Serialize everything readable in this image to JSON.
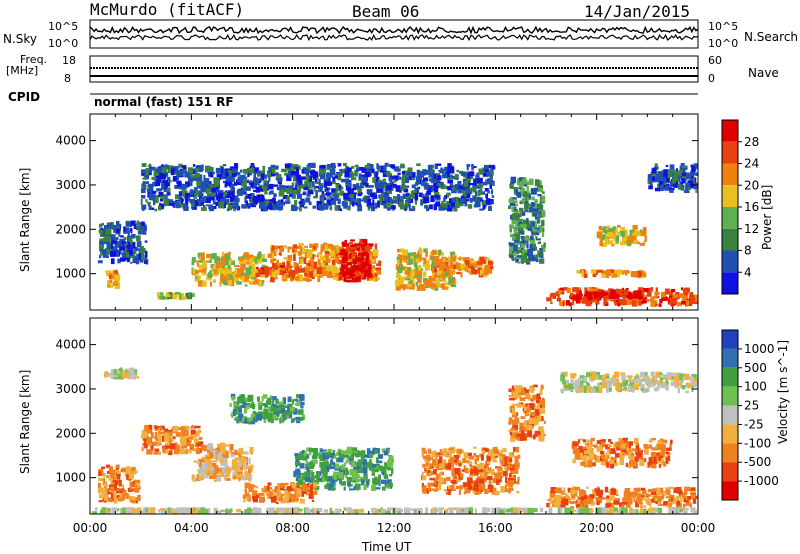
{
  "header": {
    "station": "McMurdo (fitACF)",
    "beam": "Beam 06",
    "date": "14/Jan/2015"
  },
  "strip_labels": {
    "nsky": "N.Sky",
    "nsky_top": "10^5",
    "nsky_bottom": "10^0",
    "nsky_top_right": "10^5",
    "nsky_bottom_right": "10^0",
    "nsearch": "N.Search",
    "freq": "Freq.",
    "freq_unit": "[MHz]",
    "freq_top": "18",
    "freq_bottom": "8",
    "nave_top": "60",
    "nave_bottom": "0",
    "nave": "Nave",
    "cpid": "CPID",
    "cpid_value": "normal (fast) 151 RF"
  },
  "chart_data": [
    {
      "type": "heatmap",
      "title": "",
      "xlabel": "",
      "ylabel": "Slant Range [km]",
      "xlim_hours": [
        0,
        24
      ],
      "ylim": [
        180,
        4600
      ],
      "yticks": [
        "1000",
        "2000",
        "3000",
        "4000"
      ],
      "colorbar": {
        "label": "Power [dB]",
        "ticks": [
          "4",
          "8",
          "12",
          "16",
          "20",
          "24",
          "28"
        ],
        "colors": [
          "#1010e0",
          "#2050b0",
          "#3a8040",
          "#60b050",
          "#e8c020",
          "#f08010",
          "#e84010",
          "#e00000"
        ]
      },
      "regions": [
        {
          "x0": 0.3,
          "x1": 2.3,
          "y0": 1200,
          "y1": 2200,
          "level": 1
        },
        {
          "x0": 0.6,
          "x1": 1.2,
          "y0": 600,
          "y1": 1100,
          "level": 5
        },
        {
          "x0": 2.5,
          "x1": 4.2,
          "y0": 400,
          "y1": 600,
          "level": 3
        },
        {
          "x0": 4.0,
          "x1": 7.0,
          "y0": 700,
          "y1": 1500,
          "level": 4
        },
        {
          "x0": 6.5,
          "x1": 8.0,
          "y0": 900,
          "y1": 1200,
          "level": 6
        },
        {
          "x0": 7.0,
          "x1": 11.5,
          "y0": 800,
          "y1": 1700,
          "level": 5
        },
        {
          "x0": 9.8,
          "x1": 11.2,
          "y0": 800,
          "y1": 1800,
          "level": 7
        },
        {
          "x0": 12.0,
          "x1": 14.5,
          "y0": 600,
          "y1": 1600,
          "level": 4
        },
        {
          "x0": 13.5,
          "x1": 16.0,
          "y0": 900,
          "y1": 1400,
          "level": 5
        },
        {
          "x0": 2.0,
          "x1": 16.0,
          "y0": 2400,
          "y1": 3500,
          "level": 1
        },
        {
          "x0": 16.5,
          "x1": 18.0,
          "y0": 1200,
          "y1": 3200,
          "level": 2
        },
        {
          "x0": 18.0,
          "x1": 24.0,
          "y0": 250,
          "y1": 700,
          "level": 6
        },
        {
          "x0": 19.0,
          "x1": 22.0,
          "y0": 400,
          "y1": 650,
          "level": 7
        },
        {
          "x0": 19.2,
          "x1": 22.0,
          "y0": 900,
          "y1": 1100,
          "level": 5
        },
        {
          "x0": 20.0,
          "x1": 22.0,
          "y0": 1600,
          "y1": 2100,
          "level": 4
        },
        {
          "x0": 22.0,
          "x1": 24.0,
          "y0": 2800,
          "y1": 3500,
          "level": 1
        }
      ]
    },
    {
      "type": "heatmap",
      "title": "",
      "xlabel": "Time UT",
      "ylabel": "Slant Range [km]",
      "xlim_hours": [
        0,
        24
      ],
      "ylim": [
        180,
        4600
      ],
      "xticks": [
        "00:00",
        "04:00",
        "08:00",
        "12:00",
        "16:00",
        "20:00",
        "00:00"
      ],
      "yticks": [
        "1000",
        "2000",
        "3000",
        "4000"
      ],
      "colorbar": {
        "label": "Velocity [m s^-1]",
        "ticks": [
          "1000",
          "500",
          "100",
          "25",
          "-25",
          "-100",
          "-500",
          "-1000"
        ],
        "colors": [
          "#2040c0",
          "#3070b0",
          "#40a040",
          "#70c050",
          "#c0c0c0",
          "#f0b040",
          "#f08020",
          "#e84010",
          "#e00000"
        ]
      },
      "regions": [
        {
          "x0": 0.3,
          "x1": 2.0,
          "y0": 400,
          "y1": 1300,
          "level": 6
        },
        {
          "x0": 0.5,
          "x1": 2.0,
          "y0": 3200,
          "y1": 3500,
          "level": 4
        },
        {
          "x0": 2.0,
          "x1": 4.5,
          "y0": 1500,
          "y1": 2200,
          "level": 6
        },
        {
          "x0": 4.0,
          "x1": 6.5,
          "y0": 900,
          "y1": 1800,
          "level": 5
        },
        {
          "x0": 5.5,
          "x1": 8.5,
          "y0": 2200,
          "y1": 2900,
          "level": 2
        },
        {
          "x0": 8.0,
          "x1": 12.0,
          "y0": 700,
          "y1": 1700,
          "level": 2
        },
        {
          "x0": 6.0,
          "x1": 9.0,
          "y0": 400,
          "y1": 900,
          "level": 6
        },
        {
          "x0": 13.0,
          "x1": 17.0,
          "y0": 600,
          "y1": 1700,
          "level": 6
        },
        {
          "x0": 16.5,
          "x1": 18.0,
          "y0": 1800,
          "y1": 3100,
          "level": 6
        },
        {
          "x0": 18.0,
          "x1": 24.0,
          "y0": 300,
          "y1": 800,
          "level": 6
        },
        {
          "x0": 19.0,
          "x1": 23.0,
          "y0": 1200,
          "y1": 1900,
          "level": 6
        },
        {
          "x0": 18.5,
          "x1": 24.0,
          "y0": 2900,
          "y1": 3400,
          "level": 4
        },
        {
          "x0": 0.0,
          "x1": 24.0,
          "y0": 180,
          "y1": 330,
          "level": 4
        }
      ]
    }
  ]
}
